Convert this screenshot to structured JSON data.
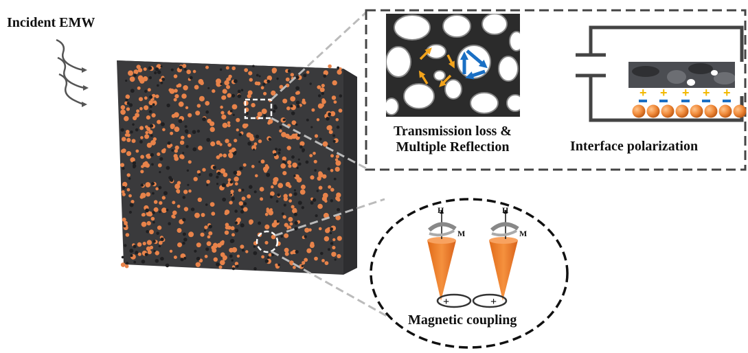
{
  "labels": {
    "incident": "Incident EMW",
    "transmission_line1": "Transmission loss &",
    "transmission_line2": "Multiple Reflection",
    "interface": "Interface polarization",
    "magnetic": "Magnetic coupling",
    "h_left": "H",
    "m_left": "M",
    "h_right": "H",
    "m_right": "M",
    "plus_sign": "+",
    "minus_sign": "−"
  },
  "colors": {
    "block": "#3a3a3c",
    "block_top": "#4a4a4c",
    "particle": "#e8834a",
    "cone": "#f07f2a",
    "arrow_orange": "#f2a31b",
    "arrow_blue": "#1a6fc4",
    "plus": "#f2b800",
    "minus": "#1a6fc4",
    "dash_border": "#444444",
    "callout_line": "#bbbbbb"
  },
  "icons": {
    "waves": "incident-wave-arrows-icon",
    "capacitor": "capacitor-icon",
    "pores": "porous-structure-icon"
  }
}
